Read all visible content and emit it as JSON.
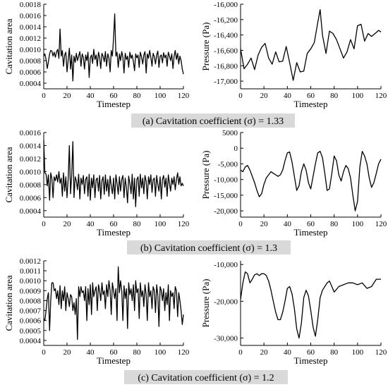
{
  "captions": [
    "(a) Cavitation coefficient (σ) = 1.33",
    "(b) Cavitation coefficient (σ) = 1.3",
    "(c) Cavitation coefficient (σ) = 1.2"
  ],
  "chart_data": [
    {
      "type": "line",
      "panel": "a-left",
      "xlabel": "Timestep",
      "ylabel": "Cavitation area",
      "xlim": [
        0,
        120
      ],
      "ylim": [
        0.0003,
        0.0018
      ],
      "xticks": [
        0,
        20,
        40,
        60,
        80,
        100,
        120
      ],
      "yticks": [
        0.0004,
        0.0006,
        0.0008,
        0.001,
        0.0012,
        0.0014,
        0.0016,
        0.0018
      ],
      "ytick_labels": [
        "0.0004",
        "0.0006",
        "0.0008",
        "0.0010",
        "0.0012",
        "0.0014",
        "0.0016",
        "0.0018"
      ],
      "x": [
        0,
        1,
        2,
        3,
        4,
        5,
        6,
        7,
        8,
        9,
        10,
        11,
        12,
        13,
        14,
        15,
        16,
        17,
        18,
        19,
        20,
        21,
        22,
        23,
        24,
        25,
        26,
        27,
        28,
        29,
        30,
        31,
        32,
        33,
        34,
        35,
        36,
        37,
        38,
        39,
        40,
        41,
        42,
        43,
        44,
        45,
        46,
        47,
        48,
        49,
        50,
        51,
        52,
        53,
        54,
        55,
        56,
        57,
        58,
        59,
        60,
        61,
        62,
        63,
        64,
        65,
        66,
        67,
        68,
        69,
        70,
        71,
        72,
        73,
        74,
        75,
        76,
        77,
        78,
        79,
        80,
        81,
        82,
        83,
        84,
        85,
        86,
        87,
        88,
        89,
        90,
        91,
        92,
        93,
        94,
        95,
        96,
        97,
        98,
        99,
        100,
        101,
        102,
        103,
        104,
        105,
        106,
        107,
        108,
        109,
        110,
        111,
        112,
        113,
        114,
        115,
        116,
        117,
        118,
        119,
        120
      ],
      "y": [
        0.00088,
        0.00092,
        0.00082,
        0.00066,
        0.00078,
        0.00092,
        0.00098,
        0.00097,
        0.00088,
        0.00095,
        0.00086,
        0.00096,
        0.001,
        0.00084,
        0.00136,
        0.00088,
        0.00098,
        0.0007,
        0.0009,
        0.00095,
        0.0006,
        0.00082,
        0.00102,
        0.00065,
        0.0009,
        0.00044,
        0.00088,
        0.00077,
        0.00093,
        0.0008,
        0.00088,
        0.00096,
        0.0007,
        0.00092,
        0.00086,
        0.00065,
        0.0009,
        0.0008,
        0.00095,
        0.0005,
        0.00085,
        0.0009,
        0.00075,
        0.001,
        0.00082,
        0.0009,
        0.0007,
        0.00095,
        0.00086,
        0.00066,
        0.00093,
        0.00088,
        0.00078,
        0.00096,
        0.0007,
        0.00092,
        0.00085,
        0.0006,
        0.00098,
        0.00088,
        0.0012,
        0.00163,
        0.00088,
        0.00095,
        0.00068,
        0.00092,
        0.0008,
        0.00096,
        0.00086,
        0.00058,
        0.00093,
        0.00082,
        0.00088,
        0.00068,
        0.00095,
        0.00084,
        0.0009,
        0.00078,
        0.00062,
        0.00092,
        0.00085,
        0.0009,
        0.00068,
        0.00095,
        0.00087,
        0.00074,
        0.0009,
        0.00096,
        0.00058,
        0.00092,
        0.00084,
        0.00098,
        0.00086,
        0.0007,
        0.00093,
        0.00087,
        0.00074,
        0.0009,
        0.00097,
        0.00068,
        0.00088,
        0.0009,
        0.00076,
        0.00094,
        0.00085,
        0.0009,
        0.0007,
        0.00095,
        0.00088,
        0.0008,
        0.00092,
        0.00066,
        0.00088,
        0.00098,
        0.00082,
        0.00093,
        0.00074,
        0.00088,
        0.0008,
        0.00065,
        0.00056
      ]
    },
    {
      "type": "line",
      "panel": "a-right",
      "xlabel": "Timestep",
      "ylabel": "Pressure (Pa)",
      "xlim": [
        0,
        120
      ],
      "ylim": [
        -17100,
        -16000
      ],
      "xticks": [
        0,
        20,
        40,
        60,
        80,
        100,
        120
      ],
      "yticks": [
        -17000,
        -16800,
        -16600,
        -16400,
        -16200,
        -16000
      ],
      "ytick_labels": [
        "-17,000",
        "-16,800",
        "-16,600",
        "-16,400",
        "-16,200",
        "-16,000"
      ],
      "x": [
        0,
        3,
        6,
        9,
        12,
        15,
        18,
        21,
        24,
        27,
        30,
        33,
        36,
        39,
        42,
        45,
        48,
        51,
        54,
        57,
        60,
        63,
        66,
        68,
        70,
        73,
        76,
        79,
        82,
        85,
        88,
        91,
        94,
        97,
        100,
        103,
        106,
        109,
        112,
        115,
        118,
        120
      ],
      "y": [
        -16580,
        -16840,
        -16780,
        -16700,
        -16850,
        -16660,
        -16560,
        -16510,
        -16700,
        -16780,
        -16620,
        -16750,
        -16740,
        -16550,
        -16760,
        -16990,
        -16760,
        -16880,
        -16870,
        -16640,
        -16580,
        -16500,
        -16240,
        -16070,
        -16400,
        -16640,
        -16350,
        -16380,
        -16460,
        -16580,
        -16700,
        -16620,
        -16460,
        -16580,
        -16280,
        -16260,
        -16480,
        -16380,
        -16420,
        -16380,
        -16340,
        -16360
      ]
    },
    {
      "type": "line",
      "panel": "b-left",
      "xlabel": "Timestep",
      "ylabel": "Cavitation area",
      "xlim": [
        0,
        120
      ],
      "ylim": [
        0.0003,
        0.0016
      ],
      "xticks": [
        0,
        20,
        40,
        60,
        80,
        100,
        120
      ],
      "yticks": [
        0.0004,
        0.0006,
        0.0008,
        0.001,
        0.0012,
        0.0014,
        0.0016
      ],
      "ytick_labels": [
        "0.0004",
        "0.0006",
        "0.0008",
        "0.0010",
        "0.0012",
        "0.0014",
        "0.0016"
      ],
      "x": [
        0,
        1,
        2,
        3,
        4,
        5,
        6,
        7,
        8,
        9,
        10,
        11,
        12,
        13,
        14,
        15,
        16,
        17,
        18,
        19,
        20,
        21,
        22,
        23,
        24,
        25,
        26,
        27,
        28,
        29,
        30,
        31,
        32,
        33,
        34,
        35,
        36,
        37,
        38,
        39,
        40,
        41,
        42,
        43,
        44,
        45,
        46,
        47,
        48,
        49,
        50,
        51,
        52,
        53,
        54,
        55,
        56,
        57,
        58,
        59,
        60,
        61,
        62,
        63,
        64,
        65,
        66,
        67,
        68,
        69,
        70,
        71,
        72,
        73,
        74,
        75,
        76,
        77,
        78,
        79,
        80,
        81,
        82,
        83,
        84,
        85,
        86,
        87,
        88,
        89,
        90,
        91,
        92,
        93,
        94,
        95,
        96,
        97,
        98,
        99,
        100,
        101,
        102,
        103,
        104,
        105,
        106,
        107,
        108,
        109,
        110,
        111,
        112,
        113,
        114,
        115,
        116,
        117,
        118,
        119,
        120
      ],
      "y": [
        0.00148,
        0.00098,
        0.00096,
        0.00078,
        0.00095,
        0.00056,
        0.00098,
        0.0009,
        0.0006,
        0.00092,
        0.00086,
        0.00095,
        0.00084,
        0.001,
        0.00082,
        0.0009,
        0.00062,
        0.00098,
        0.0007,
        0.00092,
        0.0006,
        0.0009,
        0.0014,
        0.00066,
        0.00094,
        0.00146,
        0.0006,
        0.00092,
        0.00086,
        0.00072,
        0.00096,
        0.00058,
        0.0009,
        0.0008,
        0.00094,
        0.00066,
        0.00088,
        0.00092,
        0.00062,
        0.00096,
        0.00056,
        0.0009,
        0.00075,
        0.00095,
        0.0006,
        0.00088,
        0.0009,
        0.0007,
        0.00094,
        0.00058,
        0.00086,
        0.00092,
        0.00065,
        0.00095,
        0.0007,
        0.00088,
        0.00062,
        0.00093,
        0.00078,
        0.00066,
        0.0009,
        0.00058,
        0.00095,
        0.00082,
        0.00065,
        0.00092,
        0.0007,
        0.00088,
        0.00094,
        0.0006,
        0.0009,
        0.00075,
        0.00052,
        0.00093,
        0.00082,
        0.00066,
        0.00096,
        0.00058,
        0.0009,
        0.00046,
        0.00088,
        0.00092,
        0.00062,
        0.00096,
        0.00075,
        0.0009,
        0.00066,
        0.00094,
        0.00085,
        0.00058,
        0.00092,
        0.0008,
        0.00095,
        0.00068,
        0.00088,
        0.0009,
        0.00062,
        0.00094,
        0.0008,
        0.0007,
        0.00092,
        0.00058,
        0.00088,
        0.00094,
        0.00076,
        0.0009,
        0.00062,
        0.00095,
        0.00082,
        0.0007,
        0.0009,
        0.0008,
        0.00092,
        0.00072,
        0.00088,
        0.00098,
        0.0008,
        0.00092,
        0.00078,
        0.00082,
        0.00078
      ]
    },
    {
      "type": "line",
      "panel": "b-right",
      "xlabel": "Timestep",
      "ylabel": "Pressure (Pa)",
      "xlim": [
        0,
        120
      ],
      "ylim": [
        -22000,
        5000
      ],
      "xticks": [
        0,
        20,
        40,
        60,
        80,
        100,
        120
      ],
      "yticks": [
        -20000,
        -15000,
        -10000,
        -5000,
        0,
        5000
      ],
      "ytick_labels": [
        "-20,000",
        "-15,000",
        "-10,000",
        "-5,000",
        "0",
        "5000"
      ],
      "x": [
        0,
        2,
        4,
        6,
        8,
        10,
        12,
        14,
        16,
        18,
        20,
        22,
        24,
        26,
        28,
        30,
        32,
        34,
        36,
        38,
        40,
        42,
        44,
        46,
        48,
        50,
        52,
        54,
        56,
        58,
        60,
        62,
        64,
        66,
        68,
        70,
        72,
        74,
        76,
        78,
        80,
        82,
        84,
        86,
        88,
        90,
        92,
        94,
        96,
        98,
        100,
        102,
        104,
        106,
        108,
        110,
        112,
        114,
        116,
        118,
        120
      ],
      "y": [
        -7000,
        -7500,
        -6000,
        -5500,
        -7000,
        -9000,
        -11000,
        -13500,
        -15500,
        -14500,
        -11500,
        -9500,
        -8500,
        -7500,
        -8000,
        -8500,
        -9000,
        -8500,
        -7000,
        -4000,
        -1500,
        -1200,
        -4500,
        -9000,
        -13500,
        -12000,
        -7500,
        -5000,
        -7000,
        -11000,
        -13000,
        -9000,
        -5000,
        -1500,
        -1000,
        -3000,
        -8000,
        -13500,
        -13000,
        -8000,
        -2500,
        -4000,
        -8500,
        -10500,
        -7500,
        -5500,
        -6500,
        -9500,
        -15000,
        -20000,
        -17000,
        -6000,
        -1000,
        -2500,
        -5000,
        -9500,
        -12500,
        -11000,
        -8000,
        -5000,
        -3500
      ]
    },
    {
      "type": "line",
      "panel": "c-left",
      "xlabel": "Timestep",
      "ylabel": "Cavitation area",
      "xlim": [
        0,
        120
      ],
      "ylim": [
        0.00035,
        0.0012
      ],
      "xticks": [
        0,
        20,
        40,
        60,
        80,
        100,
        120
      ],
      "yticks": [
        0.0004,
        0.0005,
        0.0006,
        0.0007,
        0.0008,
        0.0009,
        0.001,
        0.0011,
        0.0012
      ],
      "ytick_labels": [
        "0.0004",
        "0.0005",
        "0.0006",
        "0.0007",
        "0.0008",
        "0.0009",
        "0.0010",
        "0.0011",
        "0.0012"
      ],
      "x": [
        0,
        1,
        2,
        3,
        4,
        5,
        6,
        7,
        8,
        9,
        10,
        11,
        12,
        13,
        14,
        15,
        16,
        17,
        18,
        19,
        20,
        21,
        22,
        23,
        24,
        25,
        26,
        27,
        28,
        29,
        30,
        31,
        32,
        33,
        34,
        35,
        36,
        37,
        38,
        39,
        40,
        41,
        42,
        43,
        44,
        45,
        46,
        47,
        48,
        49,
        50,
        51,
        52,
        53,
        54,
        55,
        56,
        57,
        58,
        59,
        60,
        61,
        62,
        63,
        64,
        65,
        66,
        67,
        68,
        69,
        70,
        71,
        72,
        73,
        74,
        75,
        76,
        77,
        78,
        79,
        80,
        81,
        82,
        83,
        84,
        85,
        86,
        87,
        88,
        89,
        90,
        91,
        92,
        93,
        94,
        95,
        96,
        97,
        98,
        99,
        100,
        101,
        102,
        103,
        104,
        105,
        106,
        107,
        108,
        109,
        110,
        111,
        112,
        113,
        114,
        115,
        116,
        117,
        118,
        119,
        120
      ],
      "y": [
        0.00062,
        0.0006,
        0.0007,
        0.00082,
        0.00088,
        0.0005,
        0.0008,
        0.00098,
        0.00098,
        0.0009,
        0.00092,
        0.00082,
        0.0009,
        0.00076,
        0.00095,
        0.00072,
        0.0009,
        0.0008,
        0.00094,
        0.0007,
        0.00088,
        0.00082,
        0.00074,
        0.00086,
        0.00084,
        0.0007,
        0.00078,
        0.00066,
        0.00082,
        0.00041,
        0.00094,
        0.00084,
        0.00094,
        0.00088,
        0.0009,
        0.0008,
        0.00094,
        0.0006,
        0.00092,
        0.00076,
        0.00096,
        0.00066,
        0.00098,
        0.00084,
        0.0009,
        0.00094,
        0.0007,
        0.00096,
        0.0009,
        0.0008,
        0.00098,
        0.00086,
        0.0009,
        0.00072,
        0.00096,
        0.00084,
        0.001,
        0.0009,
        0.00066,
        0.00098,
        0.0009,
        0.00082,
        0.00092,
        0.0006,
        0.00114,
        0.00088,
        0.001,
        0.0009,
        0.0006,
        0.00095,
        0.00082,
        0.00092,
        0.00052,
        0.00098,
        0.00086,
        0.00092,
        0.0008,
        0.00096,
        0.0007,
        0.001,
        0.00088,
        0.00092,
        0.00062,
        0.00098,
        0.00084,
        0.0009,
        0.00074,
        0.00096,
        0.00086,
        0.0006,
        0.00098,
        0.00084,
        0.0009,
        0.00072,
        0.00094,
        0.0009,
        0.00068,
        0.00096,
        0.00086,
        0.00054,
        0.00094,
        0.0009,
        0.0008,
        0.00092,
        0.0007,
        0.00088,
        0.00076,
        0.00096,
        0.0006,
        0.0009,
        0.00084,
        0.00088,
        0.00072,
        0.00094,
        0.0009,
        0.00064,
        0.00088,
        0.0008,
        0.0007,
        0.00056,
        0.00066
      ]
    },
    {
      "type": "line",
      "panel": "c-right",
      "xlabel": "Timestep",
      "ylabel": "Pressure (Pa)",
      "xlim": [
        0,
        120
      ],
      "ylim": [
        -32000,
        -9000
      ],
      "xticks": [
        0,
        20,
        40,
        60,
        80,
        100,
        120
      ],
      "yticks": [
        -30000,
        -20000,
        -10000
      ],
      "ytick_labels": [
        "-30,000",
        "-20,000",
        "-10,000"
      ],
      "x": [
        0,
        2,
        4,
        6,
        8,
        10,
        12,
        14,
        16,
        18,
        20,
        22,
        24,
        26,
        28,
        30,
        32,
        34,
        36,
        38,
        40,
        42,
        44,
        46,
        48,
        50,
        52,
        54,
        56,
        58,
        60,
        62,
        64,
        66,
        68,
        70,
        72,
        74,
        76,
        78,
        80,
        84,
        88,
        92,
        96,
        100,
        104,
        108,
        112,
        116,
        120
      ],
      "y": [
        -19500,
        -15000,
        -12000,
        -12500,
        -15000,
        -14000,
        -12800,
        -12500,
        -13000,
        -12500,
        -12500,
        -13000,
        -14500,
        -17000,
        -20000,
        -23000,
        -25000,
        -25000,
        -23000,
        -20000,
        -16500,
        -16000,
        -18000,
        -22000,
        -27500,
        -30000,
        -26000,
        -19000,
        -17000,
        -18500,
        -22500,
        -27000,
        -29500,
        -25000,
        -19000,
        -17000,
        -16000,
        -15000,
        -14500,
        -16000,
        -17500,
        -16000,
        -15500,
        -15000,
        -15000,
        -15500,
        -15000,
        -16500,
        -16000,
        -14000,
        -14000
      ]
    }
  ]
}
